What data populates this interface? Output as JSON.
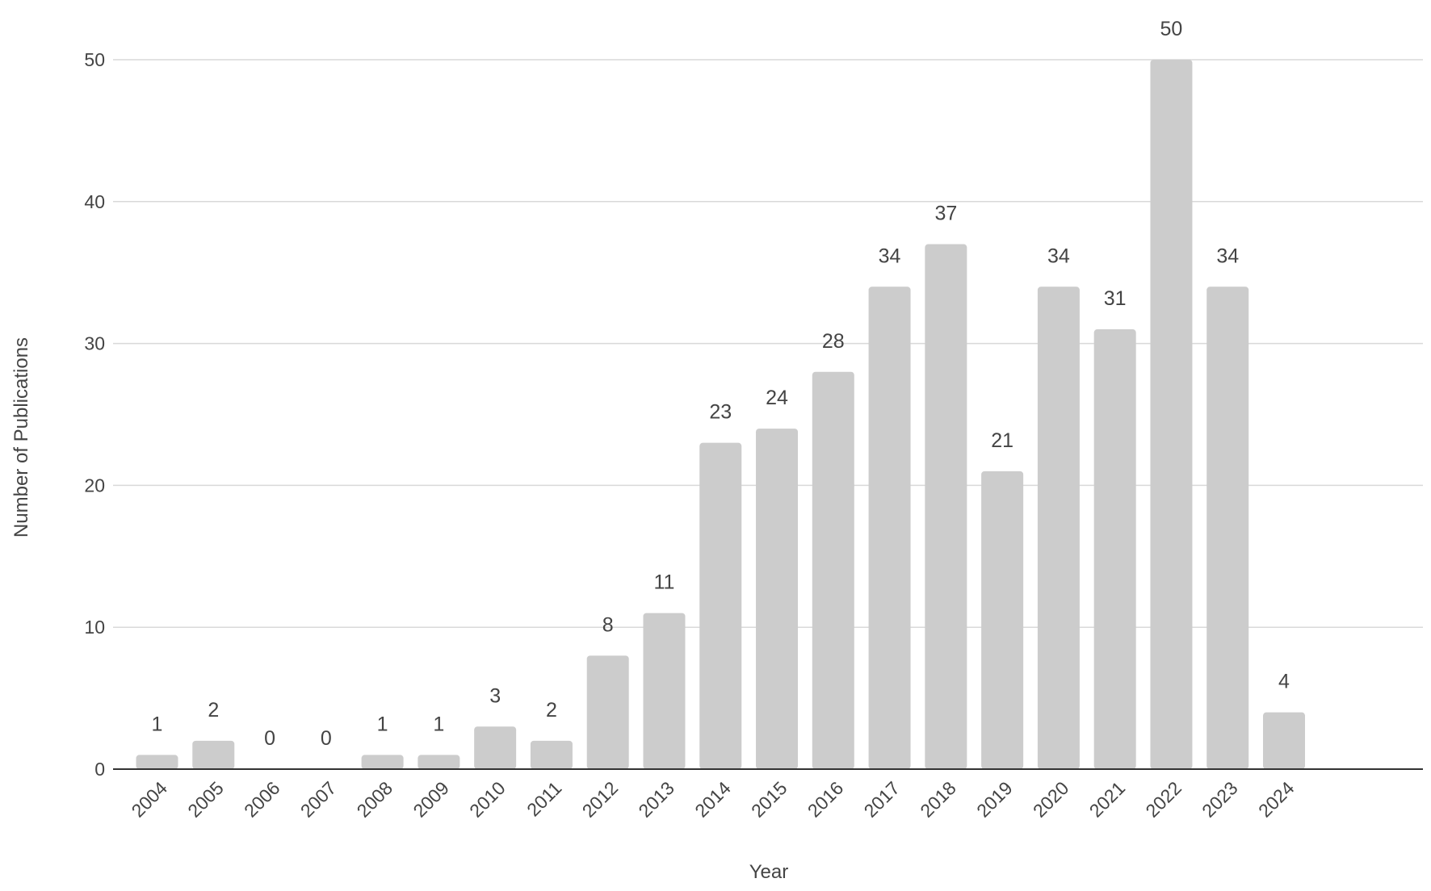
{
  "chart_data": {
    "type": "bar",
    "title": "",
    "xlabel": "Year",
    "ylabel": "Number of Publications",
    "categories": [
      "2004",
      "2005",
      "2006",
      "2007",
      "2008",
      "2009",
      "2010",
      "2011",
      "2012",
      "2013",
      "2014",
      "2015",
      "2016",
      "2017",
      "2018",
      "2019",
      "2020",
      "2021",
      "2022",
      "2023",
      "2024"
    ],
    "values": [
      1,
      2,
      0,
      0,
      1,
      1,
      3,
      2,
      8,
      11,
      23,
      24,
      28,
      34,
      37,
      21,
      34,
      31,
      50,
      34,
      4
    ],
    "ylim": [
      0,
      50
    ],
    "yticks": [
      "0",
      "10",
      "20",
      "30",
      "40",
      "50"
    ],
    "grid": true,
    "legend": "none",
    "colors": {
      "bar": "#cccccc",
      "grid": "#d9d9d9",
      "axis": "#333333",
      "text": "#444444"
    }
  }
}
